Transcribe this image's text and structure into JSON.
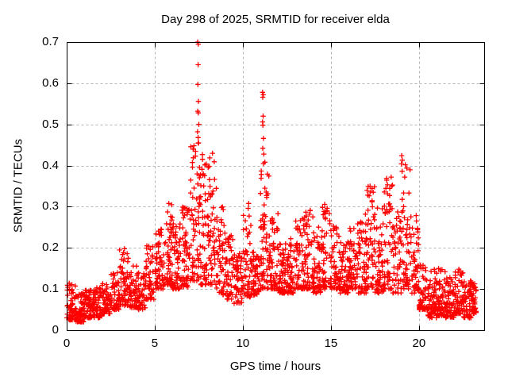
{
  "chart_data": {
    "type": "scatter",
    "title": "Day 298 of 2025, SRMTID for receiver elda",
    "xlabel": "GPS time / hours",
    "ylabel": "SRMTID / TECUs",
    "series_name": "SRMTID",
    "legend": "none",
    "grid": true,
    "marker": "plus",
    "marker_color": "#ff0000",
    "grid_color": "#b4b4b4",
    "frame_color": "#000000",
    "background_color": "#ffffff",
    "xlim": [
      0,
      23.7
    ],
    "ylim": [
      0,
      0.7
    ],
    "x_ticks": [
      0,
      5,
      10,
      15,
      20
    ],
    "x_tick_labels": [
      "0",
      "5",
      "10",
      "15",
      "20"
    ],
    "y_ticks": [
      0,
      0.1,
      0.2,
      0.3,
      0.4,
      0.5,
      0.6,
      0.7
    ],
    "y_tick_labels": [
      "0",
      "0.1",
      "0.2",
      "0.3",
      "0.4",
      "0.5",
      "0.6",
      "0.7"
    ],
    "density_bands_format": [
      "hour_start",
      "hour_end",
      "y_min",
      "y_max",
      "n_points"
    ],
    "density_bands": [
      [
        0.0,
        0.5,
        0.025,
        0.115,
        55
      ],
      [
        0.5,
        1.0,
        0.02,
        0.09,
        70
      ],
      [
        1.0,
        1.5,
        0.03,
        0.1,
        62
      ],
      [
        1.5,
        2.0,
        0.03,
        0.105,
        62
      ],
      [
        2.0,
        2.5,
        0.04,
        0.115,
        55
      ],
      [
        2.5,
        3.0,
        0.05,
        0.14,
        50
      ],
      [
        3.0,
        3.5,
        0.06,
        0.195,
        55
      ],
      [
        3.5,
        4.0,
        0.055,
        0.165,
        50
      ],
      [
        4.0,
        4.5,
        0.05,
        0.14,
        46
      ],
      [
        4.5,
        5.0,
        0.075,
        0.21,
        50
      ],
      [
        5.0,
        5.5,
        0.1,
        0.25,
        55
      ],
      [
        5.5,
        6.0,
        0.11,
        0.305,
        56
      ],
      [
        6.0,
        6.5,
        0.1,
        0.285,
        55
      ],
      [
        6.5,
        7.0,
        0.105,
        0.3,
        56
      ],
      [
        7.0,
        7.5,
        0.12,
        0.455,
        60
      ],
      [
        7.5,
        8.0,
        0.11,
        0.43,
        60
      ],
      [
        8.0,
        8.5,
        0.11,
        0.44,
        56
      ],
      [
        8.5,
        9.0,
        0.085,
        0.31,
        52
      ],
      [
        9.0,
        9.5,
        0.075,
        0.23,
        50
      ],
      [
        9.5,
        10.0,
        0.065,
        0.19,
        50
      ],
      [
        10.0,
        10.5,
        0.08,
        0.3,
        50
      ],
      [
        10.5,
        11.0,
        0.085,
        0.2,
        56
      ],
      [
        11.0,
        11.5,
        0.1,
        0.415,
        60
      ],
      [
        11.5,
        12.0,
        0.1,
        0.285,
        56
      ],
      [
        12.0,
        12.5,
        0.09,
        0.21,
        55
      ],
      [
        12.5,
        13.0,
        0.09,
        0.225,
        55
      ],
      [
        13.0,
        13.5,
        0.1,
        0.285,
        56
      ],
      [
        13.5,
        14.0,
        0.1,
        0.295,
        55
      ],
      [
        14.0,
        14.5,
        0.09,
        0.255,
        55
      ],
      [
        14.5,
        15.0,
        0.1,
        0.31,
        55
      ],
      [
        15.0,
        15.5,
        0.1,
        0.255,
        55
      ],
      [
        15.5,
        16.0,
        0.09,
        0.225,
        55
      ],
      [
        16.0,
        16.5,
        0.1,
        0.265,
        55
      ],
      [
        16.5,
        17.0,
        0.09,
        0.285,
        55
      ],
      [
        17.0,
        17.5,
        0.1,
        0.35,
        55
      ],
      [
        17.5,
        18.0,
        0.09,
        0.3,
        52
      ],
      [
        18.0,
        18.5,
        0.1,
        0.37,
        52
      ],
      [
        18.5,
        19.0,
        0.09,
        0.305,
        50
      ],
      [
        19.0,
        19.5,
        0.1,
        0.42,
        52
      ],
      [
        19.5,
        20.0,
        0.09,
        0.28,
        50
      ],
      [
        20.0,
        20.5,
        0.05,
        0.17,
        55
      ],
      [
        20.5,
        21.0,
        0.03,
        0.15,
        62
      ],
      [
        21.0,
        21.5,
        0.035,
        0.15,
        62
      ],
      [
        21.5,
        22.0,
        0.03,
        0.13,
        62
      ],
      [
        22.0,
        22.5,
        0.04,
        0.155,
        62
      ],
      [
        22.5,
        23.0,
        0.03,
        0.12,
        62
      ],
      [
        23.0,
        23.25,
        0.04,
        0.115,
        35
      ]
    ],
    "outlier_points": [
      [
        7.44,
        0.7
      ],
      [
        7.47,
        0.695
      ],
      [
        7.46,
        0.645
      ],
      [
        7.45,
        0.597
      ],
      [
        7.48,
        0.556
      ],
      [
        7.44,
        0.532
      ],
      [
        7.47,
        0.528
      ],
      [
        7.5,
        0.5
      ],
      [
        7.43,
        0.482
      ],
      [
        7.46,
        0.468
      ],
      [
        7.49,
        0.455
      ],
      [
        11.12,
        0.578
      ],
      [
        11.16,
        0.572
      ],
      [
        11.13,
        0.566
      ],
      [
        11.15,
        0.52
      ],
      [
        11.12,
        0.506
      ],
      [
        11.14,
        0.498
      ],
      [
        11.17,
        0.466
      ],
      [
        11.13,
        0.442
      ],
      [
        11.19,
        0.428
      ],
      [
        19.02,
        0.424
      ],
      [
        19.05,
        0.413
      ],
      [
        19.0,
        0.404
      ],
      [
        19.04,
        0.386
      ],
      [
        18.42,
        0.372
      ],
      [
        18.45,
        0.35
      ],
      [
        17.22,
        0.35
      ],
      [
        17.25,
        0.336
      ],
      [
        10.33,
        0.308
      ],
      [
        10.3,
        0.296
      ],
      [
        5.8,
        0.308
      ],
      [
        3.28,
        0.198
      ]
    ]
  }
}
